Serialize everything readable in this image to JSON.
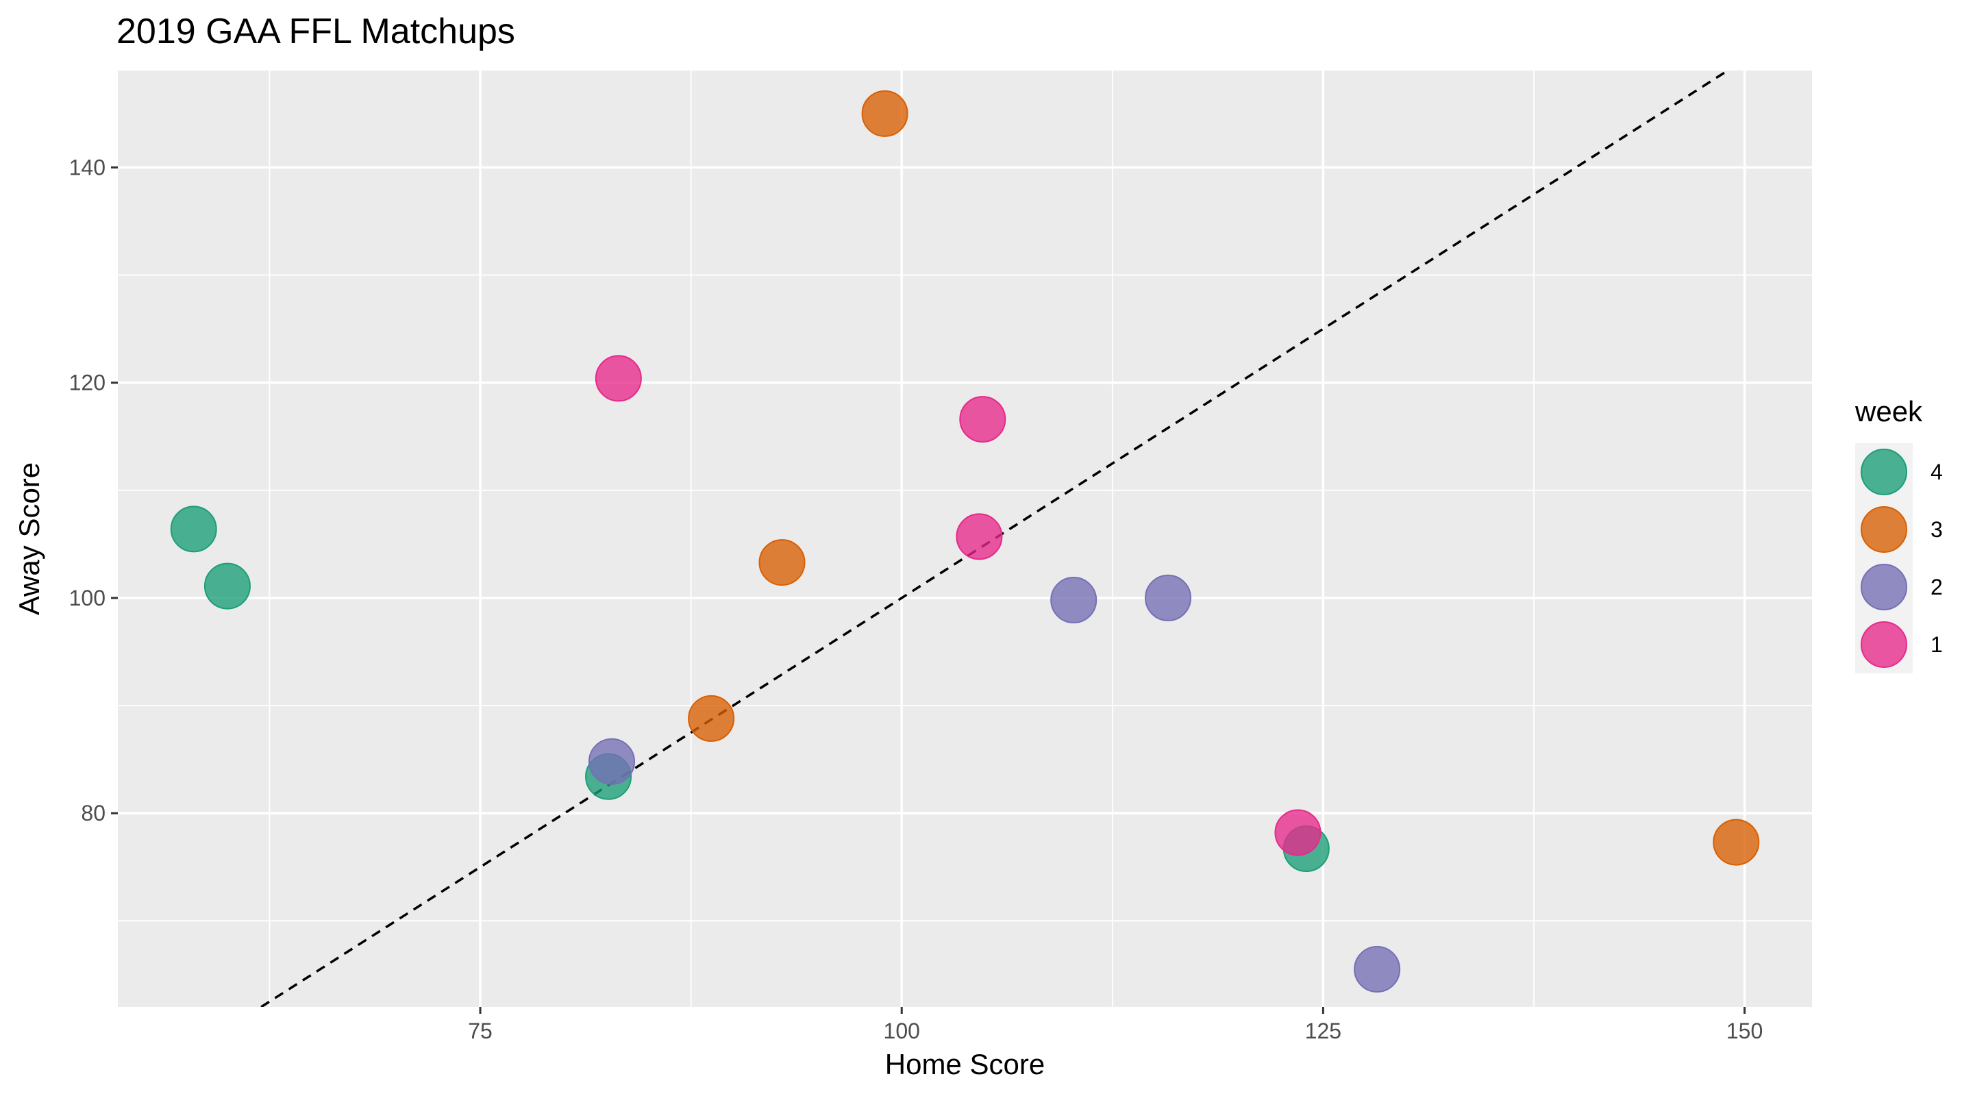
{
  "chart_data": {
    "type": "scatter",
    "title": "2019 GAA FFL Matchups",
    "xlabel": "Home Score",
    "ylabel": "Away Score",
    "xlim": [
      53.5,
      154
    ],
    "ylim": [
      62,
      149
    ],
    "x_ticks": [
      75,
      100,
      125,
      150
    ],
    "y_ticks": [
      80,
      100,
      120,
      140
    ],
    "grid": true,
    "reference_line": {
      "type": "identity",
      "style": "dashed",
      "color": "#000000"
    },
    "legend": {
      "title": "week",
      "position": "right",
      "entries": [
        "4",
        "3",
        "2",
        "1"
      ]
    },
    "series": [
      {
        "name": "4",
        "color": "#1B9E77",
        "points": [
          {
            "x": 58,
            "y": 106.4
          },
          {
            "x": 60,
            "y": 101.1
          },
          {
            "x": 82.6,
            "y": 83.4
          },
          {
            "x": 124,
            "y": 76.7
          }
        ]
      },
      {
        "name": "3",
        "color": "#D95F02",
        "points": [
          {
            "x": 99,
            "y": 145
          },
          {
            "x": 92.9,
            "y": 103.3
          },
          {
            "x": 88.7,
            "y": 88.8
          },
          {
            "x": 149.5,
            "y": 77.3
          }
        ]
      },
      {
        "name": "2",
        "color": "#7570B3",
        "points": [
          {
            "x": 110.2,
            "y": 99.8
          },
          {
            "x": 115.8,
            "y": 100
          },
          {
            "x": 82.8,
            "y": 84.8
          },
          {
            "x": 128.2,
            "y": 65.5
          }
        ]
      },
      {
        "name": "1",
        "color": "#E7298A",
        "points": [
          {
            "x": 83.2,
            "y": 120.4
          },
          {
            "x": 104.8,
            "y": 116.6
          },
          {
            "x": 104.6,
            "y": 105.7
          },
          {
            "x": 123.5,
            "y": 78.2
          }
        ]
      }
    ]
  }
}
